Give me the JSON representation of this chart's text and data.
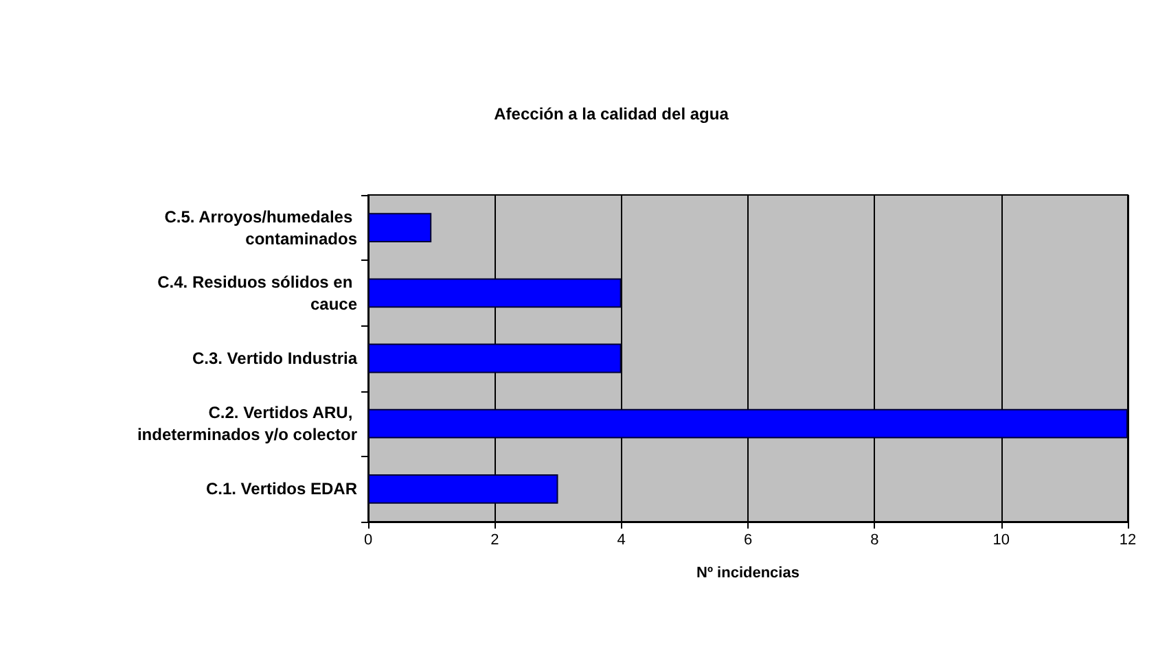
{
  "chart_data": {
    "type": "bar",
    "orientation": "horizontal",
    "title": "Afección a la calidad del agua",
    "xlabel": "Nº incidencias",
    "categories": [
      "C.5. Arroyos/humedales contaminados",
      "C.4. Residuos sólidos en cauce",
      "C.3. Vertido Industria",
      "C.2. Vertidos ARU, indeterminados y/o colector",
      "C.1. Vertidos EDAR"
    ],
    "values": [
      1,
      4,
      4,
      12,
      3
    ],
    "color": "#0000ff",
    "xlim": [
      0,
      12
    ],
    "xticks": [
      0,
      2,
      4,
      6,
      8,
      10,
      12
    ],
    "grid": "x"
  }
}
